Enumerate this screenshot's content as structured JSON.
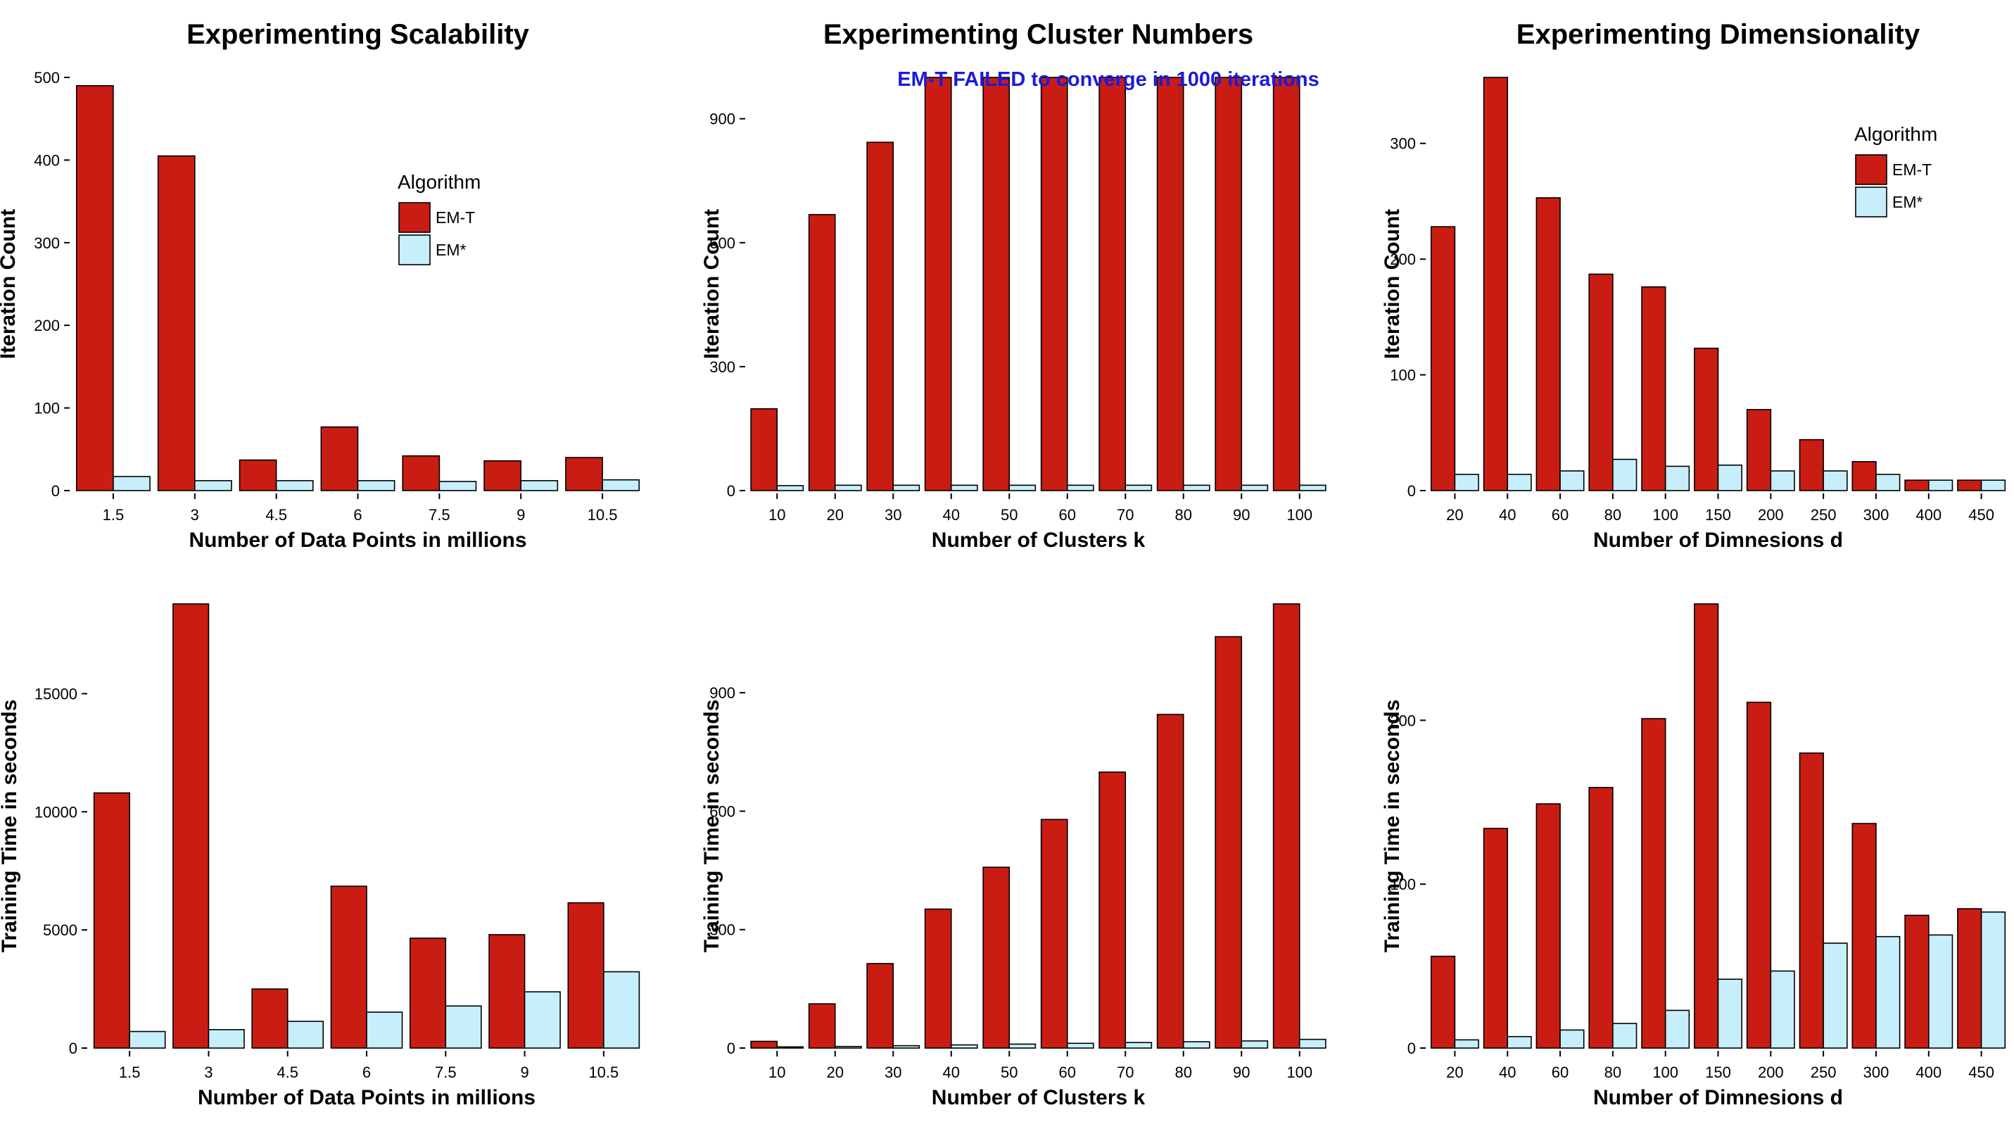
{
  "colors": {
    "em_t": "#c91d13",
    "em_star": "#c6effb",
    "outline": "#000000",
    "annotation": "#1a1adb"
  },
  "chart_data": [
    {
      "type": "bar",
      "title": "Experimenting Scalability",
      "xlabel": "Number of Data Points in millions",
      "ylabel": "Iteration Count",
      "categories": [
        "1.5",
        "3",
        "4.5",
        "6",
        "7.5",
        "9",
        "10.5"
      ],
      "series": [
        {
          "name": "EM-T",
          "values": [
            490,
            405,
            37,
            77,
            42,
            36,
            40
          ]
        },
        {
          "name": "EM*",
          "values": [
            17,
            12,
            12,
            12,
            11,
            12,
            13
          ]
        }
      ],
      "ylim": [
        0,
        500
      ],
      "yticks": [
        0,
        100,
        200,
        300,
        400,
        500
      ],
      "legend": {
        "title": "Algorithm",
        "position": "top-right"
      },
      "annotation": ""
    },
    {
      "type": "bar",
      "title": "Experimenting Cluster Numbers",
      "xlabel": "Number of Clusters k",
      "ylabel": "Iteration Count",
      "categories": [
        "10",
        "20",
        "30",
        "40",
        "50",
        "60",
        "70",
        "80",
        "90",
        "100"
      ],
      "series": [
        {
          "name": "EM-T",
          "values": [
            198,
            668,
            843,
            1000,
            1000,
            1000,
            1000,
            1000,
            1000,
            1000
          ]
        },
        {
          "name": "EM*",
          "values": [
            12,
            13,
            13,
            13,
            13,
            13,
            13,
            13,
            13,
            13
          ]
        }
      ],
      "ylim": [
        0,
        1000
      ],
      "yticks": [
        0,
        300,
        600,
        900
      ],
      "legend": null,
      "annotation": "EM-T FAILED to converge in 1000 iterations"
    },
    {
      "type": "bar",
      "title": "Experimenting Dimensionality",
      "xlabel": "Number of Dimnesions d",
      "ylabel": "Iteration Count",
      "categories": [
        "20",
        "40",
        "60",
        "80",
        "100",
        "150",
        "200",
        "250",
        "300",
        "400",
        "450"
      ],
      "series": [
        {
          "name": "EM-T",
          "values": [
            228,
            357,
            253,
            187,
            176,
            123,
            70,
            44,
            25,
            9,
            9
          ]
        },
        {
          "name": "EM*",
          "values": [
            14,
            14,
            17,
            27,
            21,
            22,
            17,
            17,
            14,
            9,
            9
          ]
        }
      ],
      "ylim": [
        0,
        357
      ],
      "yticks": [
        0,
        100,
        200,
        300
      ],
      "legend": {
        "title": "Algorithm",
        "position": "top-right"
      },
      "annotation": ""
    },
    {
      "type": "bar",
      "title": "",
      "xlabel": "Number of Data Points in millions",
      "ylabel": "Training Time in seconds",
      "categories": [
        "1.5",
        "3",
        "4.5",
        "6",
        "7.5",
        "9",
        "10.5"
      ],
      "series": [
        {
          "name": "EM-T",
          "values": [
            10800,
            18800,
            2500,
            6850,
            4650,
            4800,
            6150
          ]
        },
        {
          "name": "EM*",
          "values": [
            700,
            780,
            1130,
            1520,
            1780,
            2380,
            3230
          ]
        }
      ],
      "ylim": [
        0,
        18800
      ],
      "yticks": [
        0,
        5000,
        10000,
        15000
      ],
      "legend": null,
      "annotation": ""
    },
    {
      "type": "bar",
      "title": "",
      "xlabel": "Number of Clusters k",
      "ylabel": "Training Time in seconds",
      "categories": [
        "10",
        "20",
        "30",
        "40",
        "50",
        "60",
        "70",
        "80",
        "90",
        "100"
      ],
      "series": [
        {
          "name": "EM-T",
          "values": [
            17,
            112,
            214,
            352,
            458,
            579,
            699,
            845,
            1042,
            1125
          ]
        },
        {
          "name": "EM*",
          "values": [
            3,
            4,
            6,
            8,
            10,
            12,
            14,
            16,
            18,
            22
          ]
        }
      ],
      "ylim": [
        0,
        1125
      ],
      "yticks": [
        0,
        300,
        600,
        900
      ],
      "legend": null,
      "annotation": ""
    },
    {
      "type": "bar",
      "title": "",
      "xlabel": "Number of Dimnesions d",
      "ylabel": "Training Time in seconds",
      "categories": [
        "20",
        "40",
        "60",
        "80",
        "100",
        "150",
        "200",
        "250",
        "300",
        "400",
        "450"
      ],
      "series": [
        {
          "name": "EM-T",
          "values": [
            56,
            134,
            149,
            159,
            201,
            271,
            211,
            180,
            137,
            81,
            85
          ]
        },
        {
          "name": "EM*",
          "values": [
            5,
            7,
            11,
            15,
            23,
            42,
            47,
            64,
            68,
            69,
            83
          ]
        }
      ],
      "ylim": [
        0,
        271
      ],
      "yticks": [
        0,
        100,
        200
      ],
      "legend": null,
      "annotation": ""
    }
  ]
}
